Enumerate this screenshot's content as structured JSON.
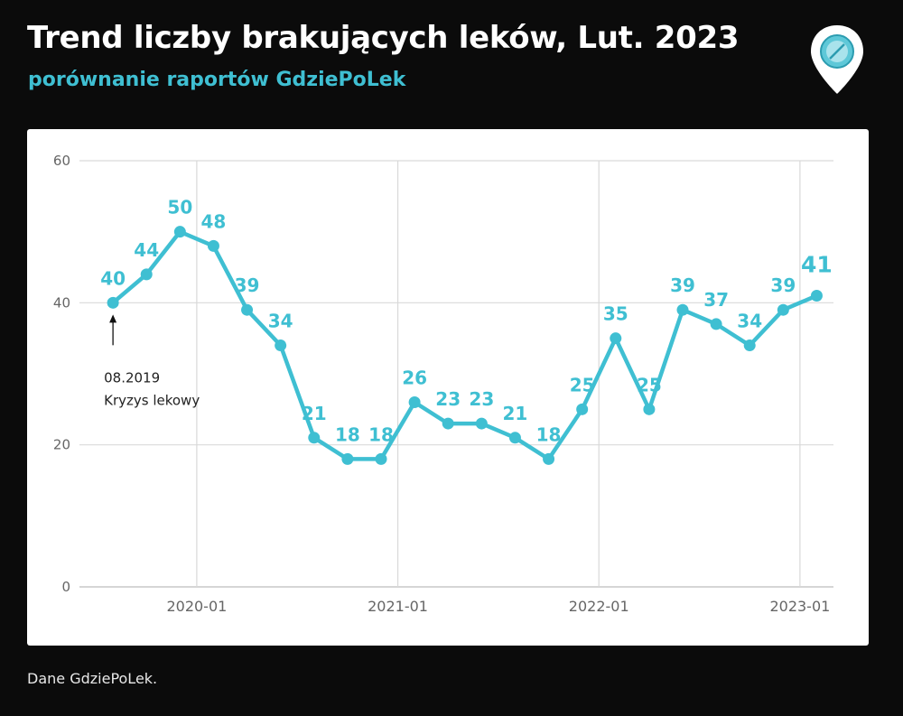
{
  "header": {
    "title": "Trend liczby brakujących leków, Lut. 2023",
    "subtitle": "porównanie raportów GdziePoLek",
    "logo_icon": "pill-pin-icon"
  },
  "footer": {
    "text": "Dane GdziePoLek."
  },
  "colors": {
    "background": "#0b0b0b",
    "accent": "#3fbfd2",
    "panel": "#ffffff",
    "grid": "#d9d9d9"
  },
  "annotation": {
    "date": "08.2019",
    "label": "Kryzys lekowy",
    "target_month": "2019-08"
  },
  "chart_data": {
    "type": "line",
    "title": "",
    "xlabel": "",
    "ylabel": "",
    "ylim": [
      0,
      60
    ],
    "yticks": [
      0,
      20,
      40,
      60
    ],
    "xticks": [
      "2020-01",
      "2021-01",
      "2022-01",
      "2023-01"
    ],
    "xlim": [
      "2019-06",
      "2023-03"
    ],
    "grid": true,
    "legend": "none",
    "series": [
      {
        "points": [
          {
            "x": "2019-08",
            "y": 40
          },
          {
            "x": "2019-10",
            "y": 44
          },
          {
            "x": "2019-12",
            "y": 50
          },
          {
            "x": "2020-02",
            "y": 48
          },
          {
            "x": "2020-04",
            "y": 39
          },
          {
            "x": "2020-06",
            "y": 34
          },
          {
            "x": "2020-08",
            "y": 21
          },
          {
            "x": "2020-10",
            "y": 18
          },
          {
            "x": "2020-12",
            "y": 18
          },
          {
            "x": "2021-02",
            "y": 26
          },
          {
            "x": "2021-04",
            "y": 23
          },
          {
            "x": "2021-06",
            "y": 23
          },
          {
            "x": "2021-08",
            "y": 21
          },
          {
            "x": "2021-10",
            "y": 18
          },
          {
            "x": "2021-12",
            "y": 25
          },
          {
            "x": "2022-02",
            "y": 35
          },
          {
            "x": "2022-04",
            "y": 25
          },
          {
            "x": "2022-06",
            "y": 39
          },
          {
            "x": "2022-08",
            "y": 37
          },
          {
            "x": "2022-10",
            "y": 34
          },
          {
            "x": "2022-12",
            "y": 39
          },
          {
            "x": "2023-02",
            "y": 41
          }
        ]
      }
    ]
  }
}
